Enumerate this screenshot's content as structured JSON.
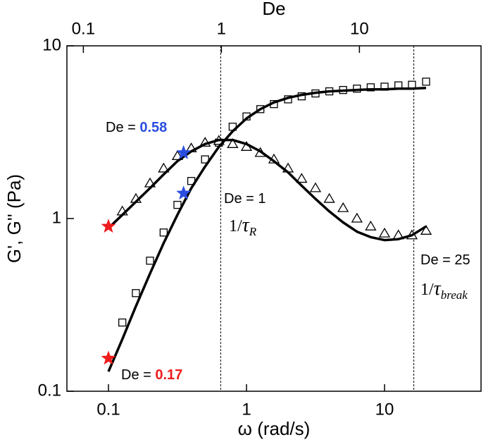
{
  "chart_data": {
    "type": "line",
    "log": true,
    "xlabel": "ω (rad/s)",
    "ylabel": "G', G'' (Pa)",
    "x2label": "De",
    "xlim": [
      0.05,
      50
    ],
    "ylim": [
      0.1,
      10
    ],
    "xticks": [
      0.1,
      1,
      10
    ],
    "yticks": [
      0.1,
      1,
      10
    ],
    "x2lim": [
      0.076,
      76
    ],
    "x2ticks": [
      0.1,
      1,
      10
    ],
    "vlines": [
      0.65,
      16.3
    ],
    "series": [
      {
        "marker": "square",
        "color": "#000000",
        "x": [
          0.126,
          0.158,
          0.2,
          0.251,
          0.316,
          0.398,
          0.501,
          0.631,
          0.794,
          1,
          1.26,
          1.58,
          2,
          2.51,
          3.16,
          3.98,
          5.01,
          6.31,
          7.94,
          10,
          12.6,
          15.8,
          20
        ],
        "values": [
          0.25,
          0.37,
          0.57,
          0.83,
          1.2,
          1.65,
          2.2,
          2.75,
          3.4,
          3.9,
          4.3,
          4.6,
          4.9,
          5.1,
          5.3,
          5.45,
          5.55,
          5.65,
          5.75,
          5.8,
          5.9,
          5.95,
          6.2
        ]
      },
      {
        "marker": "triangle",
        "color": "#000000",
        "x": [
          0.126,
          0.158,
          0.2,
          0.251,
          0.316,
          0.398,
          0.501,
          0.631,
          0.794,
          1,
          1.26,
          1.58,
          2,
          2.51,
          3.16,
          3.98,
          5.01,
          6.31,
          7.94,
          10,
          12.6,
          15.8,
          20
        ],
        "values": [
          1.1,
          1.3,
          1.6,
          1.95,
          2.3,
          2.55,
          2.75,
          2.82,
          2.7,
          2.6,
          2.4,
          2.2,
          1.95,
          1.7,
          1.5,
          1.3,
          1.15,
          1.0,
          0.9,
          0.82,
          0.8,
          0.8,
          0.85
        ]
      },
      {
        "marker": "line",
        "color": "#000000",
        "x": [
          0.1,
          0.126,
          0.158,
          0.2,
          0.251,
          0.316,
          0.398,
          0.501,
          0.631,
          0.794,
          1,
          1.26,
          1.58,
          2,
          2.51,
          3.16,
          3.98,
          5.01,
          6.31,
          7.94,
          10,
          12.6,
          15.8,
          20
        ],
        "values": [
          0.13,
          0.2,
          0.31,
          0.48,
          0.72,
          1.05,
          1.5,
          2.0,
          2.6,
          3.2,
          3.8,
          4.3,
          4.7,
          5.0,
          5.2,
          5.35,
          5.45,
          5.5,
          5.55,
          5.6,
          5.6,
          5.65,
          5.65,
          5.7
        ]
      },
      {
        "marker": "line",
        "color": "#000000",
        "x": [
          0.1,
          0.126,
          0.158,
          0.2,
          0.251,
          0.316,
          0.398,
          0.501,
          0.631,
          0.794,
          1,
          1.26,
          1.58,
          2,
          2.51,
          3.16,
          3.98,
          5.01,
          6.31,
          7.94,
          10,
          12.6,
          15.8,
          20
        ],
        "values": [
          0.88,
          1.05,
          1.25,
          1.5,
          1.8,
          2.15,
          2.45,
          2.7,
          2.85,
          2.85,
          2.7,
          2.45,
          2.15,
          1.85,
          1.55,
          1.3,
          1.1,
          0.95,
          0.84,
          0.78,
          0.75,
          0.76,
          0.8,
          0.9
        ]
      },
      {
        "marker": "star",
        "color": "#ee1c1c",
        "x": [
          0.1,
          0.1
        ],
        "values": [
          0.9,
          0.155
        ]
      },
      {
        "marker": "star",
        "color": "#2a4de0",
        "x": [
          0.35,
          0.35
        ],
        "values": [
          2.4,
          1.4
        ]
      }
    ],
    "annotations": [
      {
        "text": "De = ",
        "value": 0.58,
        "color": "#2a4de0"
      },
      {
        "text": "De = ",
        "value": 0.17,
        "color": "#ee1c1c"
      },
      {
        "text": "De = ",
        "value": 1
      },
      {
        "text": "De = ",
        "value": 25
      },
      {
        "text": "1/",
        "symbol": "τ",
        "sub": "R"
      },
      {
        "text": "1/",
        "symbol": "τ",
        "sub": "break"
      }
    ]
  }
}
